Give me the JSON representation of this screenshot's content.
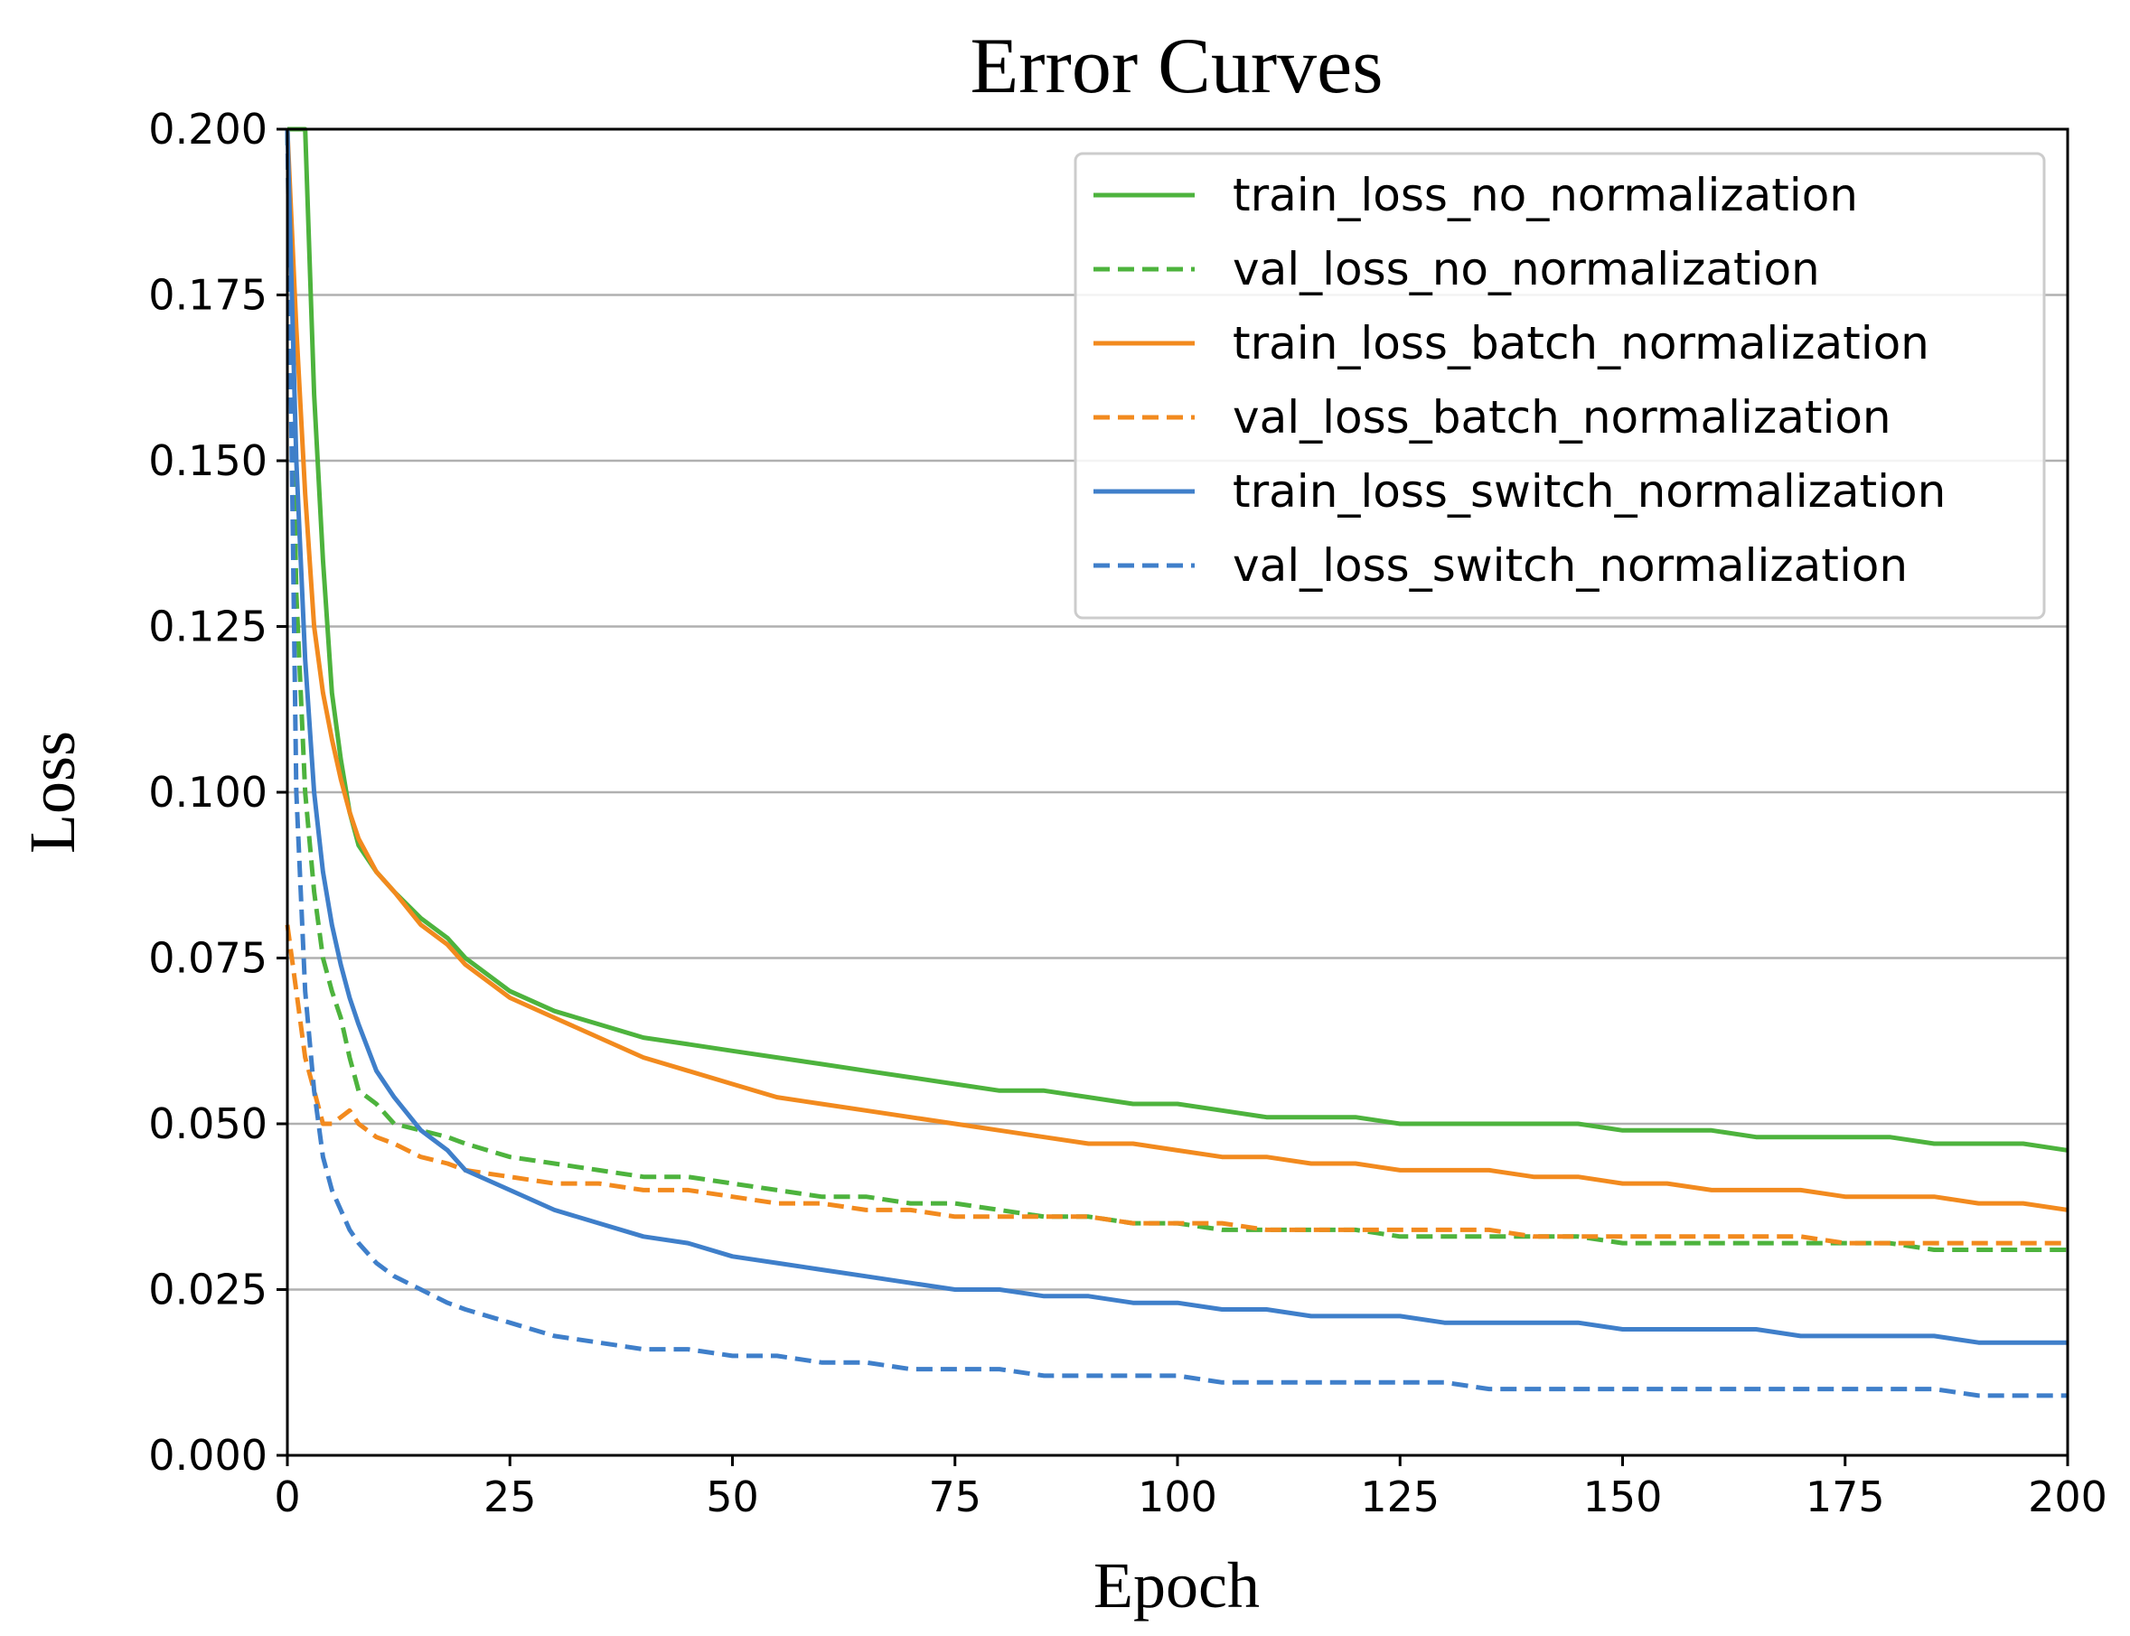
{
  "chart_data": {
    "type": "line",
    "title": "Error Curves",
    "xlabel": "Epoch",
    "ylabel": "Loss",
    "xlim": [
      0,
      200
    ],
    "ylim": [
      0,
      0.2
    ],
    "xticks": [
      0,
      25,
      50,
      75,
      100,
      125,
      150,
      175,
      200
    ],
    "xtick_labels": [
      "0",
      "25",
      "50",
      "75",
      "100",
      "125",
      "150",
      "175",
      "200"
    ],
    "yticks": [
      0,
      0.025,
      0.05,
      0.075,
      0.1,
      0.125,
      0.15,
      0.175,
      0.2
    ],
    "ytick_labels": [
      "0.000",
      "0.025",
      "0.050",
      "0.075",
      "0.100",
      "0.125",
      "0.150",
      "0.175",
      "0.200"
    ],
    "grid": "horizontal",
    "legend_position": "top-right",
    "series": [
      {
        "name": "train_loss_no_normalization",
        "color": "#4db33d",
        "style": "solid",
        "x": [
          0,
          1,
          2,
          3,
          4,
          5,
          6,
          7,
          8,
          10,
          12,
          15,
          18,
          20,
          25,
          30,
          35,
          40,
          45,
          50,
          55,
          60,
          65,
          70,
          75,
          80,
          85,
          90,
          95,
          100,
          105,
          110,
          115,
          120,
          125,
          130,
          135,
          140,
          145,
          150,
          155,
          160,
          165,
          170,
          175,
          180,
          185,
          190,
          195,
          200
        ],
        "y": [
          0.2,
          0.2,
          0.2,
          0.16,
          0.135,
          0.115,
          0.105,
          0.097,
          0.092,
          0.088,
          0.085,
          0.081,
          0.078,
          0.075,
          0.07,
          0.067,
          0.065,
          0.063,
          0.062,
          0.061,
          0.06,
          0.059,
          0.058,
          0.057,
          0.056,
          0.055,
          0.055,
          0.054,
          0.053,
          0.053,
          0.052,
          0.051,
          0.051,
          0.051,
          0.05,
          0.05,
          0.05,
          0.05,
          0.05,
          0.049,
          0.049,
          0.049,
          0.048,
          0.048,
          0.048,
          0.048,
          0.047,
          0.047,
          0.047,
          0.046
        ]
      },
      {
        "name": "val_loss_no_normalization",
        "color": "#4db33d",
        "style": "dashed",
        "x": [
          0,
          1,
          2,
          3,
          4,
          5,
          6,
          7,
          8,
          10,
          12,
          15,
          18,
          20,
          25,
          30,
          35,
          40,
          45,
          50,
          55,
          60,
          65,
          70,
          75,
          80,
          85,
          90,
          95,
          100,
          105,
          110,
          115,
          120,
          125,
          130,
          135,
          140,
          145,
          150,
          155,
          160,
          165,
          170,
          175,
          180,
          185,
          190,
          195,
          200
        ],
        "y": [
          0.2,
          0.13,
          0.1,
          0.085,
          0.075,
          0.07,
          0.066,
          0.06,
          0.055,
          0.053,
          0.05,
          0.049,
          0.048,
          0.047,
          0.045,
          0.044,
          0.043,
          0.042,
          0.042,
          0.041,
          0.04,
          0.039,
          0.039,
          0.038,
          0.038,
          0.037,
          0.036,
          0.036,
          0.035,
          0.035,
          0.034,
          0.034,
          0.034,
          0.034,
          0.033,
          0.033,
          0.033,
          0.033,
          0.033,
          0.032,
          0.032,
          0.032,
          0.032,
          0.032,
          0.032,
          0.032,
          0.031,
          0.031,
          0.031,
          0.031
        ]
      },
      {
        "name": "train_loss_batch_normalization",
        "color": "#f28a1e",
        "style": "solid",
        "x": [
          0,
          1,
          2,
          3,
          4,
          5,
          6,
          7,
          8,
          10,
          12,
          15,
          18,
          20,
          25,
          30,
          35,
          40,
          45,
          50,
          55,
          60,
          65,
          70,
          75,
          80,
          85,
          90,
          95,
          100,
          105,
          110,
          115,
          120,
          125,
          130,
          135,
          140,
          145,
          150,
          155,
          160,
          165,
          170,
          175,
          180,
          185,
          190,
          195,
          200
        ],
        "y": [
          0.2,
          0.17,
          0.145,
          0.125,
          0.115,
          0.108,
          0.102,
          0.097,
          0.093,
          0.088,
          0.085,
          0.08,
          0.077,
          0.074,
          0.069,
          0.066,
          0.063,
          0.06,
          0.058,
          0.056,
          0.054,
          0.053,
          0.052,
          0.051,
          0.05,
          0.049,
          0.048,
          0.047,
          0.047,
          0.046,
          0.045,
          0.045,
          0.044,
          0.044,
          0.043,
          0.043,
          0.043,
          0.042,
          0.042,
          0.041,
          0.041,
          0.04,
          0.04,
          0.04,
          0.039,
          0.039,
          0.039,
          0.038,
          0.038,
          0.037
        ]
      },
      {
        "name": "val_loss_batch_normalization",
        "color": "#f28a1e",
        "style": "dashed",
        "x": [
          0,
          1,
          2,
          3,
          4,
          5,
          6,
          7,
          8,
          10,
          12,
          15,
          18,
          20,
          25,
          30,
          35,
          40,
          45,
          50,
          55,
          60,
          65,
          70,
          75,
          80,
          85,
          90,
          95,
          100,
          105,
          110,
          115,
          120,
          125,
          130,
          135,
          140,
          145,
          150,
          155,
          160,
          165,
          170,
          175,
          180,
          185,
          190,
          195,
          200
        ],
        "y": [
          0.08,
          0.07,
          0.06,
          0.055,
          0.05,
          0.05,
          0.051,
          0.052,
          0.05,
          0.048,
          0.047,
          0.045,
          0.044,
          0.043,
          0.042,
          0.041,
          0.041,
          0.04,
          0.04,
          0.039,
          0.038,
          0.038,
          0.037,
          0.037,
          0.036,
          0.036,
          0.036,
          0.036,
          0.035,
          0.035,
          0.035,
          0.034,
          0.034,
          0.034,
          0.034,
          0.034,
          0.034,
          0.033,
          0.033,
          0.033,
          0.033,
          0.033,
          0.033,
          0.033,
          0.032,
          0.032,
          0.032,
          0.032,
          0.032,
          0.032
        ]
      },
      {
        "name": "train_loss_switch_normalization",
        "color": "#3f7fca",
        "style": "solid",
        "x": [
          0,
          1,
          2,
          3,
          4,
          5,
          6,
          7,
          8,
          10,
          12,
          15,
          18,
          20,
          25,
          30,
          35,
          40,
          45,
          50,
          55,
          60,
          65,
          70,
          75,
          80,
          85,
          90,
          95,
          100,
          105,
          110,
          115,
          120,
          125,
          130,
          135,
          140,
          145,
          150,
          155,
          160,
          165,
          170,
          175,
          180,
          185,
          190,
          195,
          200
        ],
        "y": [
          0.2,
          0.15,
          0.12,
          0.1,
          0.088,
          0.08,
          0.074,
          0.069,
          0.065,
          0.058,
          0.054,
          0.049,
          0.046,
          0.043,
          0.04,
          0.037,
          0.035,
          0.033,
          0.032,
          0.03,
          0.029,
          0.028,
          0.027,
          0.026,
          0.025,
          0.025,
          0.024,
          0.024,
          0.023,
          0.023,
          0.022,
          0.022,
          0.021,
          0.021,
          0.021,
          0.02,
          0.02,
          0.02,
          0.02,
          0.019,
          0.019,
          0.019,
          0.019,
          0.018,
          0.018,
          0.018,
          0.018,
          0.017,
          0.017,
          0.017
        ]
      },
      {
        "name": "val_loss_switch_normalization",
        "color": "#3f7fca",
        "style": "dashed",
        "x": [
          0,
          1,
          2,
          3,
          4,
          5,
          6,
          7,
          8,
          10,
          12,
          15,
          18,
          20,
          25,
          30,
          35,
          40,
          45,
          50,
          55,
          60,
          65,
          70,
          75,
          80,
          85,
          90,
          95,
          100,
          105,
          110,
          115,
          120,
          125,
          130,
          135,
          140,
          145,
          150,
          155,
          160,
          165,
          170,
          175,
          180,
          185,
          190,
          195,
          200
        ],
        "y": [
          0.2,
          0.1,
          0.07,
          0.055,
          0.045,
          0.04,
          0.037,
          0.034,
          0.032,
          0.029,
          0.027,
          0.025,
          0.023,
          0.022,
          0.02,
          0.018,
          0.017,
          0.016,
          0.016,
          0.015,
          0.015,
          0.014,
          0.014,
          0.013,
          0.013,
          0.013,
          0.012,
          0.012,
          0.012,
          0.012,
          0.011,
          0.011,
          0.011,
          0.011,
          0.011,
          0.011,
          0.01,
          0.01,
          0.01,
          0.01,
          0.01,
          0.01,
          0.01,
          0.01,
          0.01,
          0.01,
          0.01,
          0.009,
          0.009,
          0.009
        ]
      }
    ]
  }
}
